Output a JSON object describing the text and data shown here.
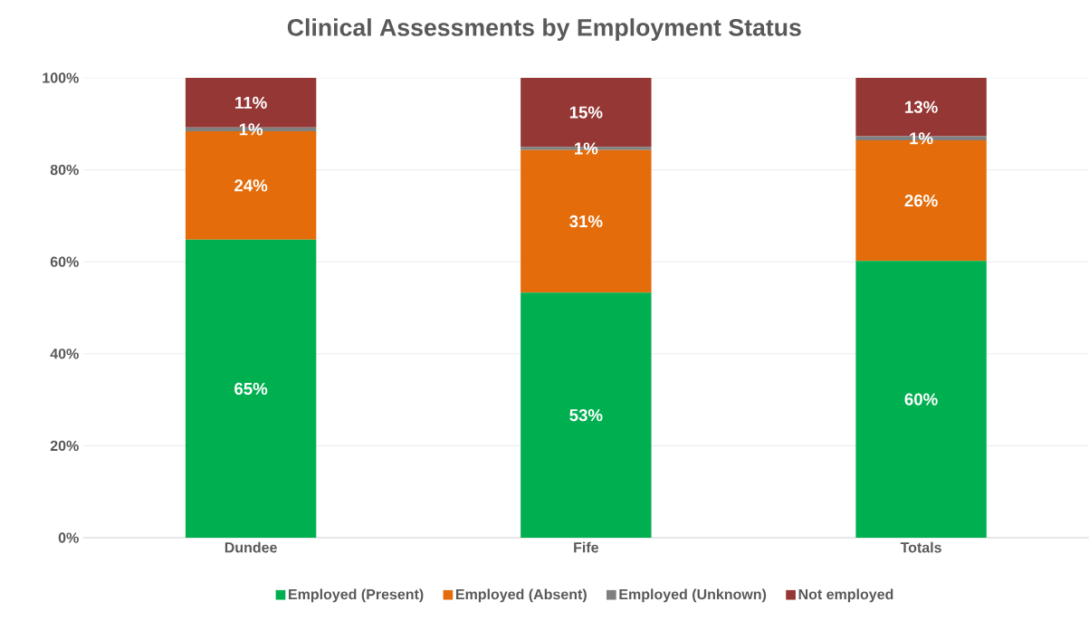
{
  "chart_data": {
    "type": "bar",
    "stacked": true,
    "title": "Clinical Assessments by Employment Status",
    "categories": [
      "Dundee",
      "Fife",
      "Totals"
    ],
    "series": [
      {
        "name": "Employed (Present)",
        "color": "#00b050",
        "values": [
          64.8,
          53.3,
          60.2
        ],
        "value_labels": [
          "65%",
          "53%",
          "60%"
        ]
      },
      {
        "name": "Employed (Absent)",
        "color": "#e46c0a",
        "values": [
          23.6,
          31.0,
          26.2
        ],
        "value_labels": [
          "24%",
          "31%",
          "26%"
        ]
      },
      {
        "name": "Employed (Unknown)",
        "color": "#808080",
        "values": [
          0.8,
          0.7,
          0.9
        ],
        "value_labels": [
          "1%",
          "1%",
          "1%"
        ]
      },
      {
        "name": "Not employed",
        "color": "#953735",
        "values": [
          10.8,
          15.0,
          12.7
        ],
        "value_labels": [
          "11%",
          "15%",
          "13%"
        ]
      }
    ],
    "ylim": [
      0,
      100
    ],
    "yticks": [
      {
        "value": 0,
        "label": "0%"
      },
      {
        "value": 20,
        "label": "20%"
      },
      {
        "value": 40,
        "label": "40%"
      },
      {
        "value": 60,
        "label": "60%"
      },
      {
        "value": 80,
        "label": "80%"
      },
      {
        "value": 100,
        "label": "100%"
      }
    ],
    "grid": "y",
    "legend": "bottom"
  }
}
